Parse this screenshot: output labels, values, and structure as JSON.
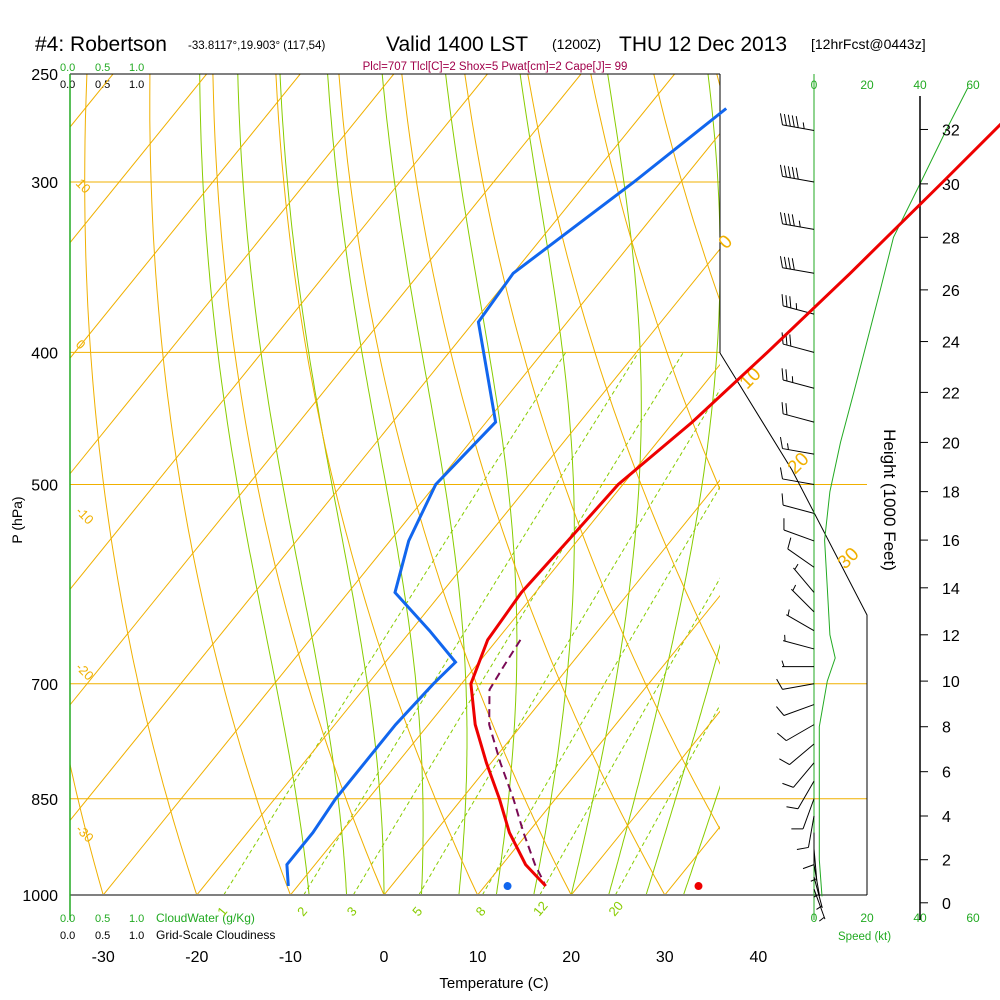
{
  "header": {
    "station": "#4: Robertson",
    "coords": "-33.8117°,19.903° (117,54)",
    "valid": "Valid 1400 LST",
    "utc": "(1200Z)",
    "date": "THU 12 Dec 2013",
    "fcst": "[12hrFcst@0443z]",
    "indices": "Plcl=707 Tlcl[C]=2 Shox=5 Pwat[cm]=2 Cape[J]= 99"
  },
  "cloud_scale": {
    "green_labels": [
      "0.0",
      "0.5",
      "1.0"
    ],
    "black_labels": [
      "0.0",
      "0.5",
      "1.0"
    ],
    "cloudwater_label": "CloudWater (g/Kg)",
    "cloudiness_label": "Grid-Scale Cloudiness"
  },
  "axes": {
    "x_title": "Temperature (C)",
    "y_title": "P (hPa)",
    "height_title": "Height (1000 Feet)",
    "speed_title": "Speed (kt)",
    "speed_ticks": [
      "0",
      "20",
      "40",
      "60"
    ],
    "dry_adiabat_labels": [
      "10",
      "0",
      "-10",
      "-20",
      "-30"
    ],
    "isotherm_labels": [
      "0",
      "10",
      "20",
      "30"
    ],
    "mixing_ratio_labels": [
      "1",
      "2",
      "3",
      "5",
      "8",
      "12",
      "20"
    ]
  },
  "colors": {
    "temperature": "#ee0000",
    "dewpoint": "#1166ee",
    "parcel": "#7a0a55",
    "isotherm": "#f0b000",
    "dry_adiabat": "#f0b000",
    "moist_adiabat": "#88cc00",
    "mixing_ratio": "#88cc00",
    "wind_speed": "#22aa22",
    "header_indices": "#a0004a"
  },
  "chart_data": {
    "type": "line",
    "chart_kind": "skew-T log-P sounding",
    "xlim": [
      -34,
      52
    ],
    "ylim_hpa": [
      1000,
      250
    ],
    "x_ticks": [
      -30,
      -20,
      -10,
      0,
      10,
      20,
      30,
      40
    ],
    "p_ticks": [
      250,
      300,
      400,
      500,
      700,
      850,
      1000
    ],
    "height_ticks_kft": [
      0,
      2,
      4,
      6,
      8,
      10,
      12,
      14,
      16,
      18,
      20,
      22,
      24,
      26,
      28,
      30,
      32
    ],
    "temperature": [
      {
        "p": 265,
        "t": -0.5
      },
      {
        "p": 300,
        "t": -2.0
      },
      {
        "p": 350,
        "t": -4.0
      },
      {
        "p": 400,
        "t": -6.0
      },
      {
        "p": 450,
        "t": -8.0
      },
      {
        "p": 500,
        "t": -10.5
      },
      {
        "p": 550,
        "t": -11.0
      },
      {
        "p": 600,
        "t": -11.5
      },
      {
        "p": 650,
        "t": -11.0
      },
      {
        "p": 700,
        "t": -9.0
      },
      {
        "p": 750,
        "t": -5.0
      },
      {
        "p": 800,
        "t": -0.5
      },
      {
        "p": 850,
        "t": 4.0
      },
      {
        "p": 900,
        "t": 8.0
      },
      {
        "p": 950,
        "t": 12.5
      },
      {
        "p": 985,
        "t": 16.5
      }
    ],
    "dewpoint": [
      {
        "p": 265,
        "t": -31.5
      },
      {
        "p": 300,
        "t": -35.0
      },
      {
        "p": 350,
        "t": -40.0
      },
      {
        "p": 380,
        "t": -39.5
      },
      {
        "p": 450,
        "t": -29.0
      },
      {
        "p": 500,
        "t": -30.0
      },
      {
        "p": 550,
        "t": -28.0
      },
      {
        "p": 600,
        "t": -25.0
      },
      {
        "p": 640,
        "t": -18.0
      },
      {
        "p": 675,
        "t": -12.5
      },
      {
        "p": 700,
        "t": -13.0
      },
      {
        "p": 750,
        "t": -13.5
      },
      {
        "p": 800,
        "t": -13.5
      },
      {
        "p": 850,
        "t": -13.5
      },
      {
        "p": 900,
        "t": -13.0
      },
      {
        "p": 950,
        "t": -13.0
      },
      {
        "p": 985,
        "t": -11.0
      }
    ],
    "parcel": [
      {
        "p": 650,
        "t": -7.5
      },
      {
        "p": 680,
        "t": -7.0
      },
      {
        "p": 707,
        "t": -6.5
      },
      {
        "p": 750,
        "t": -3.5
      },
      {
        "p": 800,
        "t": 1.0
      },
      {
        "p": 850,
        "t": 5.5
      },
      {
        "p": 900,
        "t": 9.5
      },
      {
        "p": 950,
        "t": 13.5
      },
      {
        "p": 985,
        "t": 16.5
      }
    ],
    "surface_markers": {
      "temperature": 33.6,
      "dewpoint": 13.2
    },
    "wind_speed_profile_kt": [
      {
        "z_kft": 0.3,
        "kt": 3
      },
      {
        "z_kft": 2,
        "kt": 2
      },
      {
        "z_kft": 4,
        "kt": 2
      },
      {
        "z_kft": 6,
        "kt": 2
      },
      {
        "z_kft": 8,
        "kt": 2
      },
      {
        "z_kft": 10,
        "kt": 5
      },
      {
        "z_kft": 11,
        "kt": 8
      },
      {
        "z_kft": 12,
        "kt": 6
      },
      {
        "z_kft": 14,
        "kt": 5
      },
      {
        "z_kft": 16,
        "kt": 4
      },
      {
        "z_kft": 18,
        "kt": 6
      },
      {
        "z_kft": 20,
        "kt": 10
      },
      {
        "z_kft": 22,
        "kt": 15
      },
      {
        "z_kft": 24,
        "kt": 20
      },
      {
        "z_kft": 26,
        "kt": 25
      },
      {
        "z_kft": 28,
        "kt": 30
      },
      {
        "z_kft": 30,
        "kt": 40
      },
      {
        "z_kft": 32,
        "kt": 50
      },
      {
        "z_kft": 33.5,
        "kt": 58
      }
    ],
    "wind_barbs": [
      {
        "p": 990,
        "dir": 160,
        "kt": 4
      },
      {
        "p": 970,
        "dir": 165,
        "kt": 5
      },
      {
        "p": 950,
        "dir": 170,
        "kt": 6
      },
      {
        "p": 925,
        "dir": 175,
        "kt": 7
      },
      {
        "p": 900,
        "dir": 180,
        "kt": 8
      },
      {
        "p": 875,
        "dir": 190,
        "kt": 8
      },
      {
        "p": 850,
        "dir": 200,
        "kt": 9
      },
      {
        "p": 825,
        "dir": 210,
        "kt": 9
      },
      {
        "p": 800,
        "dir": 220,
        "kt": 9
      },
      {
        "p": 775,
        "dir": 230,
        "kt": 9
      },
      {
        "p": 750,
        "dir": 240,
        "kt": 8
      },
      {
        "p": 725,
        "dir": 250,
        "kt": 8
      },
      {
        "p": 700,
        "dir": 260,
        "kt": 8
      },
      {
        "p": 680,
        "dir": 270,
        "kt": 7
      },
      {
        "p": 660,
        "dir": 285,
        "kt": 6
      },
      {
        "p": 640,
        "dir": 300,
        "kt": 6
      },
      {
        "p": 620,
        "dir": 315,
        "kt": 6
      },
      {
        "p": 600,
        "dir": 320,
        "kt": 7
      },
      {
        "p": 575,
        "dir": 305,
        "kt": 8
      },
      {
        "p": 550,
        "dir": 290,
        "kt": 9
      },
      {
        "p": 525,
        "dir": 285,
        "kt": 10
      },
      {
        "p": 500,
        "dir": 280,
        "kt": 12
      },
      {
        "p": 475,
        "dir": 280,
        "kt": 14
      },
      {
        "p": 450,
        "dir": 285,
        "kt": 20
      },
      {
        "p": 425,
        "dir": 285,
        "kt": 25
      },
      {
        "p": 400,
        "dir": 285,
        "kt": 30
      },
      {
        "p": 375,
        "dir": 285,
        "kt": 35
      },
      {
        "p": 350,
        "dir": 280,
        "kt": 40
      },
      {
        "p": 325,
        "dir": 280,
        "kt": 45
      },
      {
        "p": 300,
        "dir": 280,
        "kt": 50
      },
      {
        "p": 275,
        "dir": 280,
        "kt": 55
      }
    ]
  }
}
